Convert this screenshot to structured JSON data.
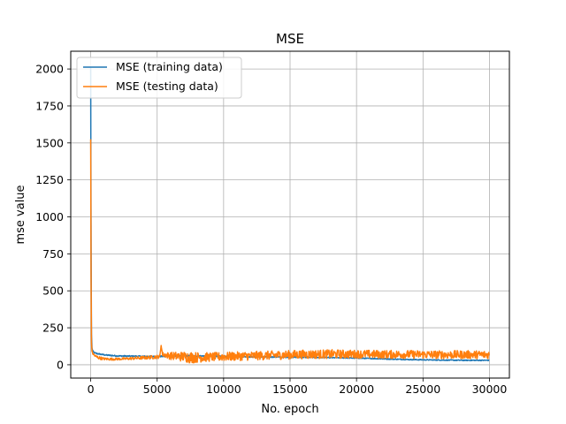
{
  "chart_data": {
    "type": "line",
    "title": "MSE",
    "xlabel": "No. epoch",
    "ylabel": "mse value",
    "xlim": [
      -1500,
      31500
    ],
    "ylim": [
      -90,
      2120
    ],
    "xticks": [
      0,
      5000,
      10000,
      15000,
      20000,
      25000,
      30000
    ],
    "yticks": [
      0,
      250,
      500,
      750,
      1000,
      1250,
      1500,
      1750,
      2000
    ],
    "grid": true,
    "legend_position": "top-left",
    "series": [
      {
        "name": "MSE (training data)",
        "color": "#1f77b4",
        "x": [
          0,
          10,
          30,
          60,
          100,
          200,
          300,
          500,
          800,
          1200,
          2000,
          3000,
          4000,
          5000,
          6000,
          7000,
          8000,
          9000,
          10000,
          12000,
          14000,
          16000,
          18000,
          20000,
          22000,
          24000,
          26000,
          28000,
          30000
        ],
        "y": [
          2010,
          1530,
          800,
          200,
          110,
          85,
          80,
          75,
          70,
          65,
          60,
          58,
          57,
          56,
          58,
          60,
          60,
          58,
          56,
          54,
          52,
          50,
          48,
          45,
          40,
          35,
          32,
          30,
          30
        ],
        "noise": [
          0,
          0,
          0,
          0,
          5,
          5,
          4,
          4,
          4,
          4,
          4,
          4,
          4,
          4,
          4,
          4,
          4,
          4,
          4,
          4,
          3,
          3,
          3,
          3,
          3,
          3,
          3,
          3,
          3
        ]
      },
      {
        "name": "MSE (testing data)",
        "color": "#ff7f0e",
        "x": [
          0,
          10,
          30,
          60,
          100,
          200,
          400,
          700,
          1000,
          1500,
          2500,
          3500,
          4500,
          5200,
          5300,
          5400,
          6000,
          7000,
          7500,
          8000,
          9000,
          10000,
          12000,
          14000,
          16000,
          18000,
          20000,
          22000,
          24000,
          26000,
          28000,
          30000
        ],
        "y": [
          1525,
          1200,
          600,
          150,
          90,
          70,
          55,
          45,
          40,
          38,
          40,
          45,
          50,
          55,
          130,
          70,
          60,
          55,
          50,
          50,
          52,
          55,
          60,
          65,
          70,
          72,
          72,
          70,
          70,
          68,
          68,
          68
        ],
        "noise": [
          0,
          0,
          0,
          0,
          10,
          10,
          10,
          10,
          8,
          8,
          8,
          10,
          12,
          12,
          0,
          15,
          25,
          35,
          40,
          35,
          30,
          30,
          30,
          30,
          30,
          30,
          28,
          28,
          28,
          28,
          28,
          28
        ]
      }
    ]
  }
}
